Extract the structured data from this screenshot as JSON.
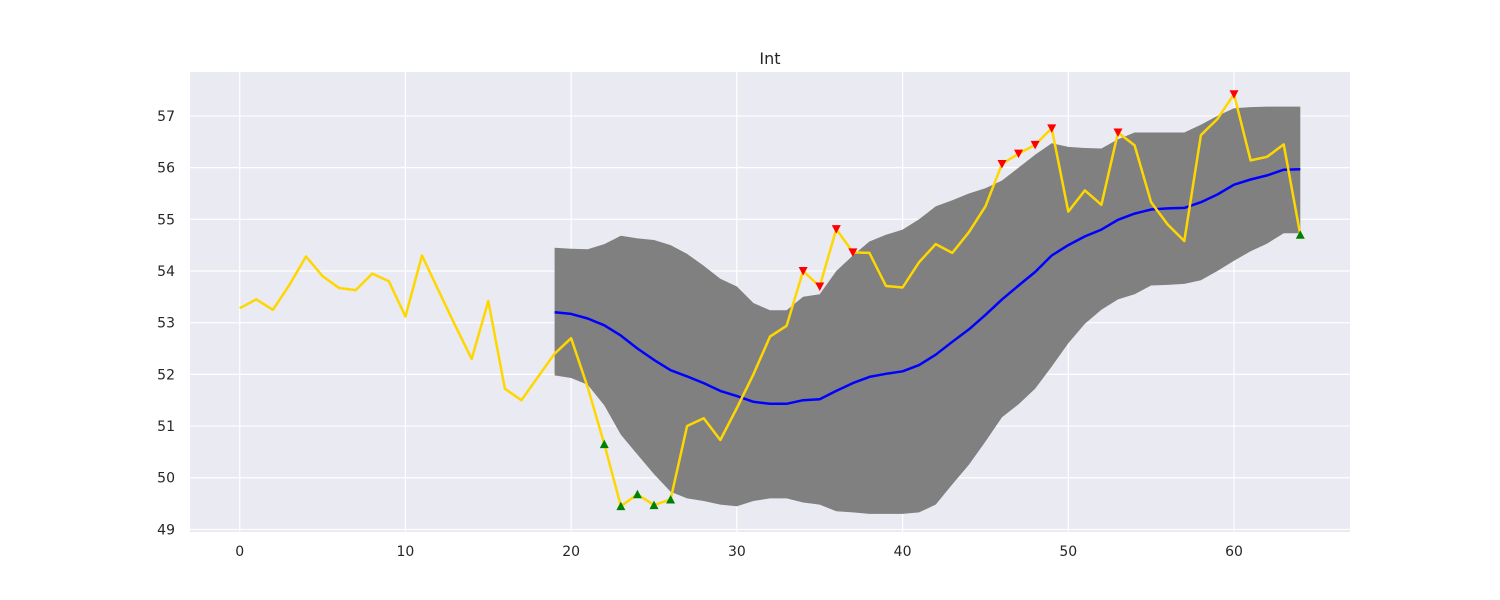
{
  "chart_data": {
    "type": "line",
    "title": "Int",
    "xlabel": "",
    "ylabel": "",
    "xlim": [
      -3,
      67
    ],
    "ylim": [
      48.95,
      57.85
    ],
    "xticks": [
      0,
      10,
      20,
      30,
      40,
      50,
      60
    ],
    "yticks": [
      49,
      50,
      51,
      52,
      53,
      54,
      55,
      56,
      57
    ],
    "grid": true,
    "legend": "none",
    "colors": {
      "background": "#EAEAF2",
      "grid": "#FFFFFF",
      "price": "#FFD700",
      "mean": "#0000FF",
      "band": "#808080",
      "sell_marker": "#FF0000",
      "buy_marker": "#008000"
    },
    "price": {
      "x": [
        0,
        1,
        2,
        3,
        4,
        5,
        6,
        7,
        8,
        9,
        10,
        11,
        12,
        13,
        14,
        15,
        16,
        17,
        18,
        19,
        20,
        21,
        22,
        23,
        24,
        25,
        26,
        27,
        28,
        29,
        30,
        31,
        32,
        33,
        34,
        35,
        36,
        37,
        38,
        39,
        40,
        41,
        42,
        43,
        44,
        45,
        46,
        47,
        48,
        49,
        50,
        51,
        52,
        53,
        54,
        55,
        56,
        57,
        58,
        59,
        60,
        61,
        62,
        63,
        64
      ],
      "y": [
        53.28,
        53.45,
        53.25,
        53.73,
        54.28,
        53.9,
        53.67,
        53.63,
        53.95,
        53.8,
        53.12,
        54.3,
        53.62,
        52.95,
        52.3,
        53.42,
        51.72,
        51.5,
        51.95,
        52.4,
        52.7,
        51.75,
        50.65,
        49.45,
        49.68,
        49.47,
        49.58,
        51.0,
        51.15,
        50.73,
        51.35,
        52.0,
        52.73,
        52.94,
        54.0,
        53.7,
        54.81,
        54.36,
        54.35,
        53.71,
        53.68,
        54.17,
        54.52,
        54.35,
        54.75,
        55.25,
        56.07,
        56.27,
        56.44,
        56.76,
        55.15,
        55.56,
        55.28,
        56.68,
        56.43,
        55.33,
        54.9,
        54.58,
        56.63,
        56.94,
        57.42,
        56.14,
        56.21,
        56.45,
        54.7
      ]
    },
    "rolling_mean": {
      "x": [
        19,
        20,
        21,
        22,
        23,
        24,
        25,
        26,
        27,
        28,
        29,
        30,
        31,
        32,
        33,
        34,
        35,
        36,
        37,
        38,
        39,
        40,
        41,
        42,
        43,
        44,
        45,
        46,
        47,
        48,
        49,
        50,
        51,
        52,
        53,
        54,
        55,
        56,
        57,
        58,
        59,
        60,
        61,
        62,
        63,
        64
      ],
      "y": [
        53.2,
        53.17,
        53.08,
        52.95,
        52.75,
        52.5,
        52.28,
        52.08,
        51.96,
        51.83,
        51.68,
        51.58,
        51.47,
        51.43,
        51.43,
        51.5,
        51.52,
        51.68,
        51.83,
        51.95,
        52.01,
        52.06,
        52.18,
        52.38,
        52.63,
        52.87,
        53.15,
        53.45,
        53.72,
        53.98,
        54.3,
        54.5,
        54.67,
        54.8,
        54.99,
        55.11,
        55.19,
        55.21,
        55.22,
        55.33,
        55.48,
        55.67,
        55.77,
        55.85,
        55.96,
        55.97
      ]
    },
    "band": {
      "x": [
        19,
        20,
        21,
        22,
        23,
        24,
        25,
        26,
        27,
        28,
        29,
        30,
        31,
        32,
        33,
        34,
        35,
        36,
        37,
        38,
        39,
        40,
        41,
        42,
        43,
        44,
        45,
        46,
        47,
        48,
        49,
        50,
        51,
        52,
        53,
        54,
        55,
        56,
        57,
        58,
        59,
        60,
        61,
        62,
        63,
        64
      ],
      "upper": [
        54.45,
        54.43,
        54.42,
        54.52,
        54.68,
        54.63,
        54.6,
        54.5,
        54.33,
        54.1,
        53.85,
        53.7,
        53.38,
        53.24,
        53.24,
        53.5,
        53.55,
        54.0,
        54.3,
        54.57,
        54.7,
        54.8,
        55.0,
        55.25,
        55.37,
        55.5,
        55.6,
        55.75,
        56.0,
        56.25,
        56.47,
        56.4,
        56.38,
        56.37,
        56.55,
        56.68,
        56.68,
        56.68,
        56.68,
        56.83,
        57.0,
        57.15,
        57.17,
        57.18,
        57.18,
        57.18
      ],
      "lower": [
        51.98,
        51.93,
        51.8,
        51.4,
        50.83,
        50.45,
        50.07,
        49.73,
        49.6,
        49.55,
        49.48,
        49.45,
        49.55,
        49.6,
        49.6,
        49.52,
        49.48,
        49.35,
        49.33,
        49.3,
        49.3,
        49.3,
        49.33,
        49.48,
        49.87,
        50.25,
        50.7,
        51.17,
        51.42,
        51.72,
        52.15,
        52.6,
        52.98,
        53.25,
        53.45,
        53.55,
        53.72,
        53.73,
        53.75,
        53.82,
        54.0,
        54.2,
        54.38,
        54.53,
        54.73,
        54.73
      ]
    },
    "sell_signals": {
      "x": [
        34,
        35,
        36,
        37,
        46,
        47,
        48,
        49,
        53,
        60
      ],
      "y": [
        54.0,
        53.7,
        54.81,
        54.36,
        56.07,
        56.27,
        56.44,
        56.76,
        56.68,
        57.42
      ]
    },
    "buy_signals": {
      "x": [
        22,
        23,
        24,
        25,
        26,
        64
      ],
      "y": [
        50.65,
        49.45,
        49.68,
        49.47,
        49.58,
        54.7
      ]
    }
  }
}
